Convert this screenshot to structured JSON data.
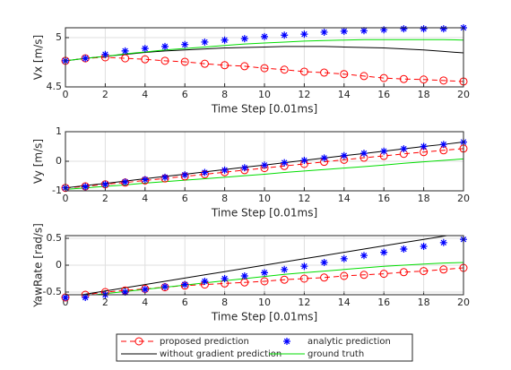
{
  "chart_data": [
    {
      "type": "line",
      "ylabel": "Vx [m/s]",
      "xlabel": "Time Step [0.01ms]",
      "x": [
        0,
        1,
        2,
        3,
        4,
        5,
        6,
        7,
        8,
        9,
        10,
        11,
        12,
        13,
        14,
        15,
        16,
        17,
        18,
        19,
        20
      ],
      "xlim": [
        0,
        20
      ],
      "xticks": [
        0,
        2,
        4,
        6,
        8,
        10,
        12,
        14,
        16,
        18,
        20
      ],
      "ylim": [
        4.5,
        5.1
      ],
      "yticks": [
        4.5,
        5
      ],
      "grid": true,
      "legend": "below",
      "series": [
        {
          "name": "proposed prediction",
          "color": "#ff0000",
          "marker": "o",
          "linestyle": "dashed",
          "values": [
            4.765,
            4.79,
            4.8,
            4.79,
            4.78,
            4.765,
            4.755,
            4.735,
            4.72,
            4.71,
            4.69,
            4.675,
            4.655,
            4.645,
            4.63,
            4.61,
            4.59,
            4.58,
            4.575,
            4.565,
            4.555
          ]
        },
        {
          "name": "analytic prediction",
          "color": "#0000ff",
          "marker": "*",
          "linestyle": "none",
          "values": [
            4.765,
            4.79,
            4.83,
            4.865,
            4.89,
            4.91,
            4.93,
            4.955,
            4.975,
            4.99,
            5.01,
            5.025,
            5.035,
            5.055,
            5.065,
            5.07,
            5.08,
            5.09,
            5.09,
            5.09,
            5.1
          ]
        },
        {
          "name": "without gradient prediction",
          "color": "#000000",
          "marker": "none",
          "linestyle": "solid",
          "values": [
            4.765,
            4.79,
            4.81,
            4.83,
            4.85,
            4.865,
            4.875,
            4.885,
            4.895,
            4.9,
            4.905,
            4.91,
            4.91,
            4.91,
            4.905,
            4.9,
            4.895,
            4.885,
            4.875,
            4.86,
            4.845
          ]
        },
        {
          "name": "ground truth",
          "color": "#00dd00",
          "marker": "none",
          "linestyle": "solid",
          "values": [
            4.765,
            4.79,
            4.81,
            4.835,
            4.855,
            4.875,
            4.89,
            4.905,
            4.92,
            4.935,
            4.945,
            4.955,
            4.965,
            4.97,
            4.975,
            4.98,
            4.98,
            4.98,
            4.98,
            4.98,
            4.975
          ]
        }
      ]
    },
    {
      "type": "line",
      "ylabel": "Vy [m/s]",
      "xlabel": "Time Step [0.01ms]",
      "x": [
        0,
        1,
        2,
        3,
        4,
        5,
        6,
        7,
        8,
        9,
        10,
        11,
        12,
        13,
        14,
        15,
        16,
        17,
        18,
        19,
        20
      ],
      "xlim": [
        0,
        20
      ],
      "xticks": [
        0,
        2,
        4,
        6,
        8,
        10,
        12,
        14,
        16,
        18,
        20
      ],
      "ylim": [
        -1,
        1
      ],
      "yticks": [
        -1,
        0,
        1
      ],
      "grid": true,
      "series": [
        {
          "name": "proposed prediction",
          "color": "#ff0000",
          "marker": "o",
          "linestyle": "dashed",
          "values": [
            -0.9,
            -0.85,
            -0.78,
            -0.72,
            -0.65,
            -0.58,
            -0.51,
            -0.44,
            -0.37,
            -0.3,
            -0.23,
            -0.16,
            -0.09,
            -0.02,
            0.05,
            0.12,
            0.18,
            0.25,
            0.31,
            0.37,
            0.43
          ]
        },
        {
          "name": "analytic prediction",
          "color": "#0000ff",
          "marker": "*",
          "linestyle": "none",
          "values": [
            -0.9,
            -0.86,
            -0.78,
            -0.7,
            -0.62,
            -0.54,
            -0.46,
            -0.38,
            -0.3,
            -0.22,
            -0.13,
            -0.05,
            0.03,
            0.11,
            0.19,
            0.27,
            0.34,
            0.42,
            0.5,
            0.57,
            0.65
          ]
        },
        {
          "name": "without gradient prediction",
          "color": "#000000",
          "marker": "none",
          "linestyle": "solid",
          "values": [
            -0.9,
            -0.82,
            -0.75,
            -0.67,
            -0.59,
            -0.51,
            -0.44,
            -0.36,
            -0.28,
            -0.2,
            -0.13,
            -0.05,
            0.03,
            0.11,
            0.19,
            0.26,
            0.34,
            0.42,
            0.5,
            0.57,
            0.65
          ]
        },
        {
          "name": "ground truth",
          "color": "#00dd00",
          "marker": "none",
          "linestyle": "solid",
          "values": [
            -0.95,
            -0.9,
            -0.85,
            -0.8,
            -0.74,
            -0.69,
            -0.64,
            -0.59,
            -0.54,
            -0.49,
            -0.44,
            -0.38,
            -0.33,
            -0.28,
            -0.23,
            -0.18,
            -0.13,
            -0.07,
            -0.02,
            0.03,
            0.08
          ]
        }
      ]
    },
    {
      "type": "line",
      "ylabel": "YawRate [rad/s]",
      "xlabel": "Time Step [0.01ms]",
      "x": [
        0,
        1,
        2,
        3,
        4,
        5,
        6,
        7,
        8,
        9,
        10,
        11,
        12,
        13,
        14,
        15,
        16,
        17,
        18,
        19,
        20
      ],
      "xlim": [
        0,
        20
      ],
      "xticks": [
        0,
        2,
        4,
        6,
        8,
        10,
        12,
        14,
        16,
        18,
        20
      ],
      "ylim": [
        -0.55,
        0.55
      ],
      "yticks": [
        -0.5,
        0,
        0.5
      ],
      "grid": true,
      "series": [
        {
          "name": "proposed prediction",
          "color": "#ff0000",
          "marker": "o",
          "linestyle": "dashed",
          "values": [
            -0.6,
            -0.55,
            -0.5,
            -0.47,
            -0.44,
            -0.41,
            -0.38,
            -0.36,
            -0.34,
            -0.32,
            -0.3,
            -0.27,
            -0.25,
            -0.23,
            -0.2,
            -0.18,
            -0.16,
            -0.13,
            -0.11,
            -0.08,
            -0.05
          ]
        },
        {
          "name": "analytic prediction",
          "color": "#0000ff",
          "marker": "*",
          "linestyle": "none",
          "values": [
            -0.6,
            -0.6,
            -0.55,
            -0.5,
            -0.45,
            -0.4,
            -0.36,
            -0.3,
            -0.25,
            -0.2,
            -0.14,
            -0.08,
            -0.02,
            0.05,
            0.12,
            0.18,
            0.24,
            0.3,
            0.35,
            0.42,
            0.48
          ]
        },
        {
          "name": "without gradient prediction",
          "color": "#000000",
          "marker": "none",
          "linestyle": "solid",
          "values": [
            -0.6,
            -0.54,
            -0.48,
            -0.42,
            -0.36,
            -0.3,
            -0.24,
            -0.18,
            -0.12,
            -0.06,
            0,
            0.06,
            0.12,
            0.18,
            0.24,
            0.3,
            0.36,
            0.42,
            0.48,
            0.54,
            0.6
          ]
        },
        {
          "name": "ground truth",
          "color": "#00dd00",
          "marker": "none",
          "linestyle": "solid",
          "values": [
            -0.6,
            -0.57,
            -0.53,
            -0.49,
            -0.45,
            -0.41,
            -0.37,
            -0.33,
            -0.29,
            -0.25,
            -0.21,
            -0.17,
            -0.14,
            -0.11,
            -0.08,
            -0.05,
            -0.02,
            0,
            0.02,
            0.04,
            0.05
          ]
        }
      ]
    }
  ]
}
